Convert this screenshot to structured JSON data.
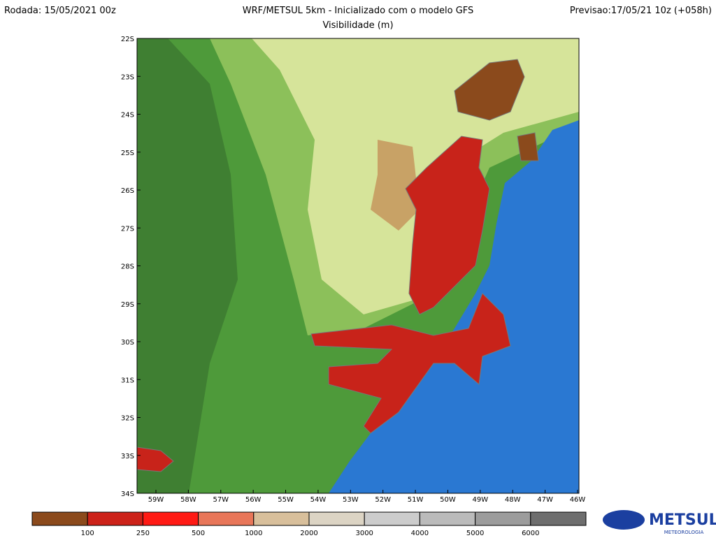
{
  "header": {
    "left": "Rodada: 15/05/2021 00z",
    "title": "WRF/METSUL 5km - Inicializado com o modelo GFS",
    "right": "Previsao:17/05/21 10z (+058h)",
    "subtitle": "Visibilidade (m)"
  },
  "map": {
    "lat_labels": [
      "22S",
      "23S",
      "24S",
      "25S",
      "26S",
      "27S",
      "28S",
      "29S",
      "30S",
      "31S",
      "32S",
      "33S",
      "34S"
    ],
    "lon_labels": [
      "59W",
      "58W",
      "57W",
      "56W",
      "55W",
      "54W",
      "53W",
      "52W",
      "51W",
      "50W",
      "49W",
      "48W",
      "47W",
      "46W"
    ]
  },
  "colorbar": {
    "colors": [
      "#8b4a1c",
      "#cc2219",
      "#ff1a14",
      "#e87659",
      "#d8bf9b",
      "#dcd4c4",
      "#cccccc",
      "#bbbbbb",
      "#9c9c9c",
      "#6e6e6e"
    ],
    "labels": [
      "100",
      "250",
      "500",
      "1000",
      "2000",
      "3000",
      "4000",
      "5000",
      "6000"
    ]
  },
  "logo": {
    "name": "METSUL",
    "tagline": "METEOROLOGIA"
  }
}
